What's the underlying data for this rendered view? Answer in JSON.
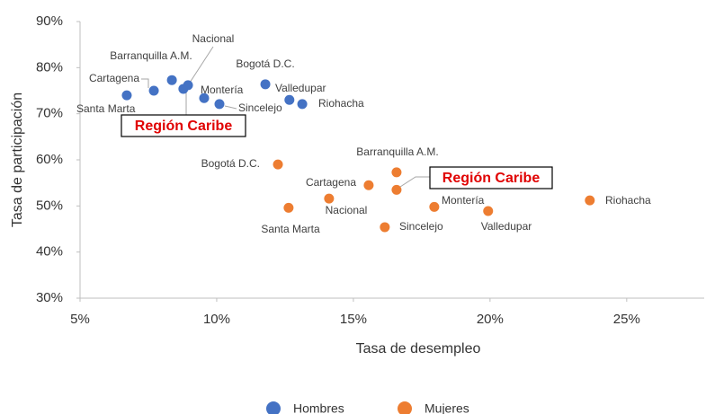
{
  "chart_data": {
    "type": "scatter",
    "x_label": "Tasa de desempleo",
    "y_label": "Tasa de participación",
    "xlim": [
      5,
      28
    ],
    "ylim": [
      30,
      90
    ],
    "xticks": [
      {
        "value": 5,
        "label": "5%"
      },
      {
        "value": 10,
        "label": "10%"
      },
      {
        "value": 15,
        "label": "15%"
      },
      {
        "value": 20,
        "label": "20%"
      },
      {
        "value": 25,
        "label": "25%"
      }
    ],
    "yticks": [
      {
        "value": 30,
        "label": "30%"
      },
      {
        "value": 40,
        "label": "40%"
      },
      {
        "value": 50,
        "label": "50%"
      },
      {
        "value": 60,
        "label": "60%"
      },
      {
        "value": 70,
        "label": "70%"
      },
      {
        "value": 80,
        "label": "80%"
      },
      {
        "value": 90,
        "label": "90%"
      }
    ],
    "grid": false,
    "legend": "bottom",
    "series": [
      {
        "name": "Hombres",
        "color": "#4472c4",
        "callout": "Región Caribe",
        "labels": [
          "Santa Marta",
          "Cartagena",
          "Barranquilla A.M.",
          null,
          "Nacional",
          "Montería",
          "Sincelejo",
          "Bogotá D.C.",
          "Valledupar",
          "Riohacha"
        ],
        "x": [
          6.71,
          7.7,
          8.36,
          8.78,
          8.95,
          9.54,
          10.1,
          11.78,
          12.66,
          13.13
        ],
        "values": [
          74.0,
          75.0,
          77.3,
          75.4,
          76.2,
          73.4,
          72.1,
          76.4,
          73.0,
          72.1
        ]
      },
      {
        "name": "Mujeres",
        "color": "#ed7d31",
        "callout": "Región Caribe",
        "labels": [
          "Bogotá D.C.",
          "Santa Marta",
          "Nacional",
          "Cartagena",
          "Barranquilla A.M.",
          null,
          "Sincelejo",
          "Montería",
          "Valledupar",
          "Riohacha"
        ],
        "x": [
          12.24,
          12.63,
          14.11,
          15.56,
          16.58,
          16.58,
          16.15,
          17.96,
          19.93,
          23.65
        ],
        "values": [
          59.0,
          49.6,
          51.6,
          54.5,
          57.3,
          53.5,
          45.4,
          49.8,
          48.9,
          51.2
        ]
      }
    ]
  }
}
